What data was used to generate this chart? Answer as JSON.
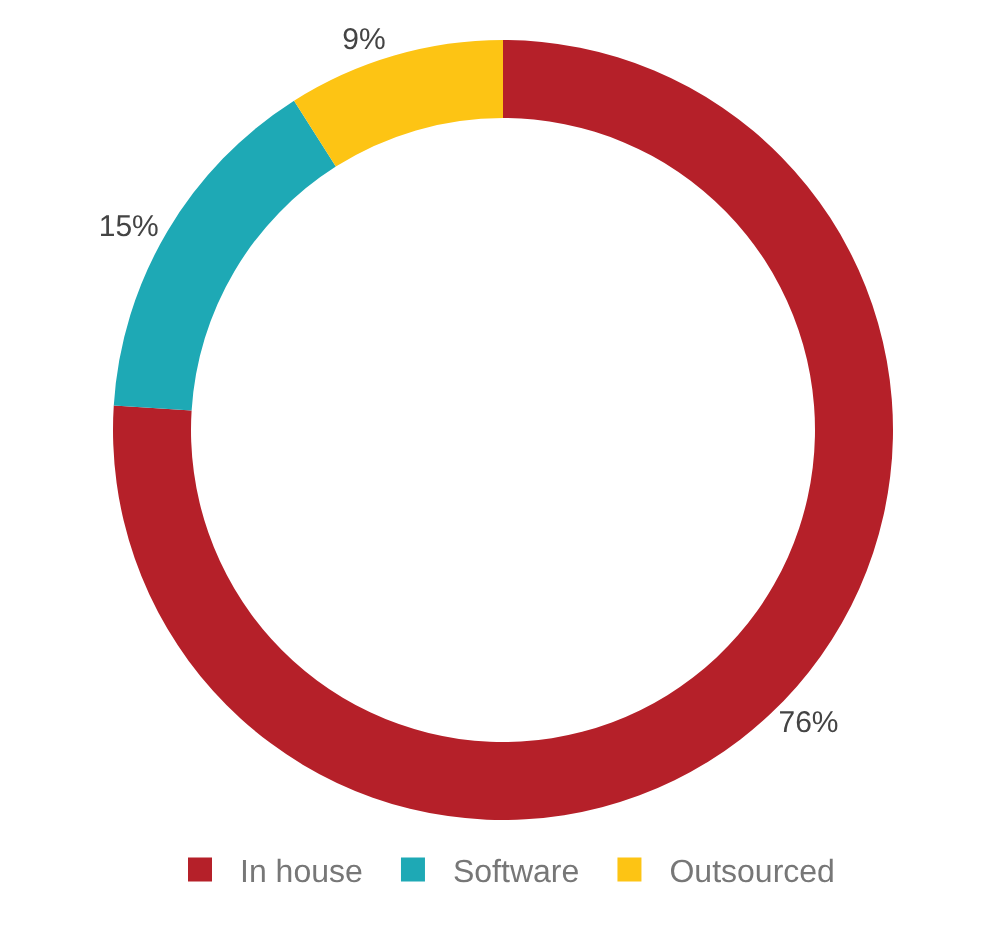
{
  "chart_data": {
    "type": "donut",
    "categories": [
      "In house",
      "Software",
      "Outsourced"
    ],
    "values": [
      76,
      15,
      9
    ],
    "colors": [
      "#b52029",
      "#1ea9b5",
      "#fdc414"
    ],
    "value_labels": [
      "76%",
      "15%",
      "9%"
    ],
    "legend": "bottom"
  }
}
